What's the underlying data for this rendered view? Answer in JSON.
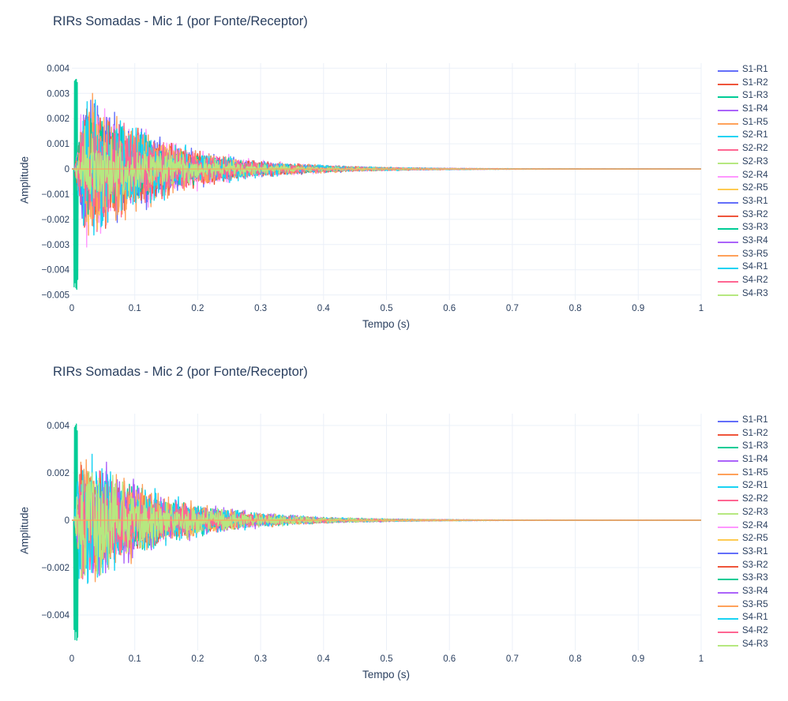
{
  "chart_data": [
    {
      "type": "line",
      "title": "RIRs Somadas - Mic 1 (por Fonte/Receptor)",
      "xlabel": "Tempo (s)",
      "ylabel": "Amplitude",
      "xlim": [
        0,
        1
      ],
      "ylim": [
        -0.0052,
        0.0042
      ],
      "x_ticks": [
        "0",
        "0.1",
        "0.2",
        "0.3",
        "0.4",
        "0.5",
        "0.6",
        "0.7",
        "0.8",
        "0.9",
        "1"
      ],
      "y_ticks": [
        "0.004",
        "0.003",
        "0.002",
        "0.001",
        "0",
        "−0.001",
        "−0.002",
        "−0.003",
        "−0.004",
        "−0.005"
      ],
      "y_tick_values": [
        0.004,
        0.003,
        0.002,
        0.001,
        0,
        -0.001,
        -0.002,
        -0.003,
        -0.004,
        -0.005
      ],
      "grid": true,
      "legend_position": "right",
      "series": [
        {
          "name": "S1-R1",
          "color": "#636efa"
        },
        {
          "name": "S1-R2",
          "color": "#EF553B"
        },
        {
          "name": "S1-R3",
          "color": "#00cc96"
        },
        {
          "name": "S1-R4",
          "color": "#ab63fa"
        },
        {
          "name": "S1-R5",
          "color": "#FFA15A"
        },
        {
          "name": "S2-R1",
          "color": "#19d3f3"
        },
        {
          "name": "S2-R2",
          "color": "#FF6692"
        },
        {
          "name": "S2-R3",
          "color": "#B6E880"
        },
        {
          "name": "S2-R4",
          "color": "#FF97FF"
        },
        {
          "name": "S2-R5",
          "color": "#FECB52"
        },
        {
          "name": "S3-R1",
          "color": "#636efa"
        },
        {
          "name": "S3-R2",
          "color": "#EF553B"
        },
        {
          "name": "S3-R3",
          "color": "#00cc96"
        },
        {
          "name": "S3-R4",
          "color": "#ab63fa"
        },
        {
          "name": "S3-R5",
          "color": "#FFA15A"
        },
        {
          "name": "S4-R1",
          "color": "#19d3f3"
        },
        {
          "name": "S4-R2",
          "color": "#FF6692"
        },
        {
          "name": "S4-R3",
          "color": "#B6E880"
        }
      ],
      "envelope": {
        "peak_amplitude": 0.0038,
        "min_amplitude": -0.0048,
        "early_peak_time": 0.05,
        "decay_to_near_zero_time": 0.6
      }
    },
    {
      "type": "line",
      "title": "RIRs Somadas - Mic 2 (por Fonte/Receptor)",
      "xlabel": "Tempo (s)",
      "ylabel": "Amplitude",
      "xlim": [
        0,
        1
      ],
      "ylim": [
        -0.0055,
        0.0045
      ],
      "x_ticks": [
        "0",
        "0.1",
        "0.2",
        "0.3",
        "0.4",
        "0.5",
        "0.6",
        "0.7",
        "0.8",
        "0.9",
        "1"
      ],
      "y_ticks": [
        "0.004",
        "0.002",
        "0",
        "−0.002",
        "−0.004"
      ],
      "y_tick_values": [
        0.004,
        0.002,
        0,
        -0.002,
        -0.004
      ],
      "grid": true,
      "legend_position": "right",
      "series": [
        {
          "name": "S1-R1",
          "color": "#636efa"
        },
        {
          "name": "S1-R2",
          "color": "#EF553B"
        },
        {
          "name": "S1-R3",
          "color": "#00cc96"
        },
        {
          "name": "S1-R4",
          "color": "#ab63fa"
        },
        {
          "name": "S1-R5",
          "color": "#FFA15A"
        },
        {
          "name": "S2-R1",
          "color": "#19d3f3"
        },
        {
          "name": "S2-R2",
          "color": "#FF6692"
        },
        {
          "name": "S2-R3",
          "color": "#B6E880"
        },
        {
          "name": "S2-R4",
          "color": "#FF97FF"
        },
        {
          "name": "S2-R5",
          "color": "#FECB52"
        },
        {
          "name": "S3-R1",
          "color": "#636efa"
        },
        {
          "name": "S3-R2",
          "color": "#EF553B"
        },
        {
          "name": "S3-R3",
          "color": "#00cc96"
        },
        {
          "name": "S3-R4",
          "color": "#ab63fa"
        },
        {
          "name": "S3-R5",
          "color": "#FFA15A"
        },
        {
          "name": "S4-R1",
          "color": "#19d3f3"
        },
        {
          "name": "S4-R2",
          "color": "#FF6692"
        },
        {
          "name": "S4-R3",
          "color": "#B6E880"
        }
      ],
      "envelope": {
        "peak_amplitude": 0.0041,
        "min_amplitude": -0.0051,
        "early_peak_time": 0.03,
        "decay_to_near_zero_time": 0.6
      }
    }
  ]
}
